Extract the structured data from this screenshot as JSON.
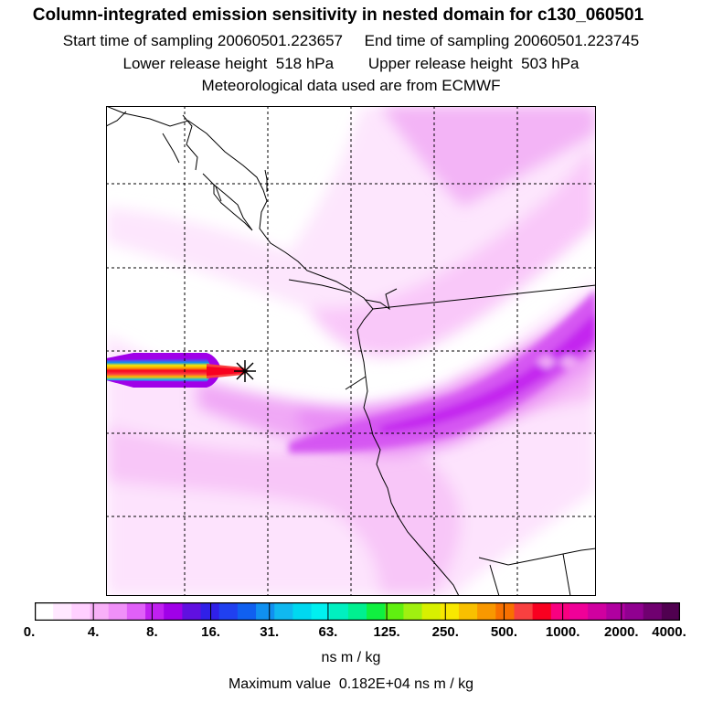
{
  "header": {
    "title": "Column-integrated emission sensitivity in nested domain for c130_060501",
    "line2_left": "Start time of sampling 20060501.223657",
    "line2_right": "End time of sampling 20060501.223745",
    "line3_left": "Lower release height  518 hPa",
    "line3_right": "Upper release height  503 hPa",
    "line4": "Meteorological data used are from ECMWF"
  },
  "colorbar": {
    "tick_labels": [
      "0.",
      "4.",
      "8.",
      "16.",
      "31.",
      "63.",
      "125.",
      "250.",
      "500.",
      "1000.",
      "2000.",
      "4000."
    ],
    "colors": [
      "#ffffff",
      "#ffe8ff",
      "#ffd0ff",
      "#f8b0f8",
      "#f090f8",
      "#e060f8",
      "#c020f0",
      "#a000e8",
      "#6010e0",
      "#3020e8",
      "#2040f0",
      "#1060f0",
      "#1090f0",
      "#10b8f0",
      "#00d8f0",
      "#00f0f0",
      "#00f0c0",
      "#00f090",
      "#10f040",
      "#60f010",
      "#a0f010",
      "#d8f000",
      "#f8e800",
      "#f8c000",
      "#f89800",
      "#f87000",
      "#f84040",
      "#f80020",
      "#f80080",
      "#f00098",
      "#d000a0",
      "#b000a0",
      "#900090",
      "#700070",
      "#500050"
    ]
  },
  "units": "ns m / kg",
  "max_value": "Maximum value  0.182E+04 ns m / kg",
  "map": {
    "receptor_marker": "receptor-asterisk",
    "plume_colors": {
      "light": "#fbd4fb",
      "mid": "#ec9cf5",
      "strong": "#d24cf2",
      "core": "#b800ec"
    }
  }
}
